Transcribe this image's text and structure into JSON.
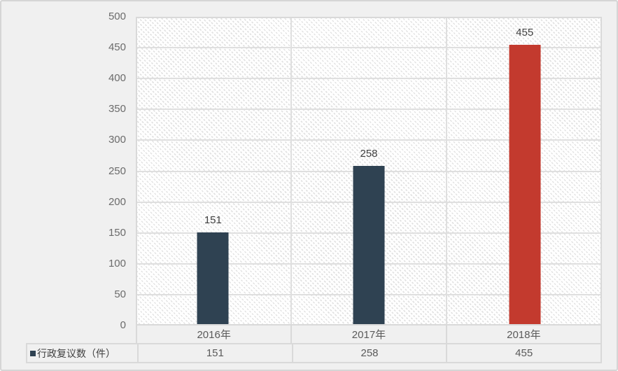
{
  "chart_data": {
    "type": "bar",
    "title": "",
    "categories": [
      "2016年",
      "2017年",
      "2018年"
    ],
    "series": [
      {
        "name": "行政复议数（件）",
        "values": [
          151,
          258,
          455
        ]
      }
    ],
    "data_labels": [
      "151",
      "258",
      "455"
    ],
    "bar_colors": [
      "#2f4252",
      "#2f4252",
      "#c33a2e"
    ],
    "xlabel": "",
    "ylabel": "",
    "ylim": [
      0,
      500
    ],
    "ytick_step": 50,
    "ytick_labels": [
      "500",
      "450",
      "400",
      "350",
      "300",
      "250",
      "200",
      "150",
      "100",
      "50",
      "0"
    ],
    "grid": true,
    "plot_fill": "light-downward-diagonal-hatch",
    "legend_position": "bottom-table"
  },
  "table": {
    "legend_marker_color": "#2f4252",
    "legend_label": "行政复议数（件）",
    "values": [
      "151",
      "258",
      "455"
    ]
  },
  "colors": {
    "bar_default": "#2f4252",
    "bar_highlight": "#c33a2e",
    "card_background": "#f0f0f0",
    "plot_background": "#ffffff",
    "gridline": "#dfdfdf",
    "table_border": "#d9d9d9",
    "tick_text": "#6b6b6b",
    "data_label_text": "#404040",
    "category_text": "#5a5a5a"
  }
}
